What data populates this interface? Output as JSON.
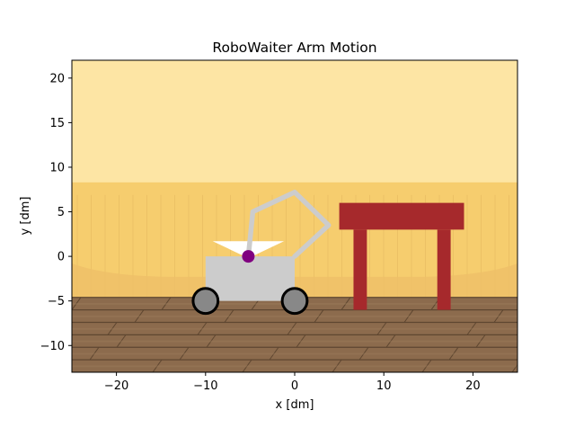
{
  "chart_data": {
    "type": "scatter",
    "title": "RoboWaiter Arm Motion",
    "xlabel": "x [dm]",
    "ylabel": "y [dm]",
    "xlim": [
      -25,
      25
    ],
    "ylim": [
      -13,
      22
    ],
    "xticks": [
      -20,
      -10,
      0,
      10,
      20
    ],
    "yticks": [
      -10,
      -5,
      0,
      5,
      10,
      15,
      20
    ],
    "xtick_labels": [
      "−20",
      "−10",
      "0",
      "10",
      "20"
    ],
    "ytick_labels": [
      "−10",
      "−5",
      "0",
      "5",
      "10",
      "15",
      "20"
    ],
    "grid": false,
    "background": {
      "sky_color": "#fde5a4",
      "wall_color": "#f6cd6e",
      "wall_top_y": 8.3,
      "wainscot_color": "#eec068",
      "floor_top_y": -4.6,
      "floor_color": "#8c6b4d",
      "floor_seam_color": "#5e4630"
    },
    "robot": {
      "body": {
        "x0": -10,
        "x1": 0,
        "y0": -5,
        "y1": 0,
        "color": "#cccccc"
      },
      "wheels": [
        {
          "x": -10,
          "y": -5,
          "r": 1.4
        },
        {
          "x": 0,
          "y": -5,
          "r": 1.4
        }
      ],
      "wheel_fill": "#888888",
      "wheel_edge": "#000000",
      "tray": {
        "points": [
          [
            -9.2,
            1.7
          ],
          [
            -1.2,
            1.7
          ],
          [
            -5.2,
            -0.2
          ]
        ],
        "color": "#ffffff"
      },
      "arm": {
        "points": [
          [
            -5.2,
            0
          ],
          [
            -4.7,
            5
          ],
          [
            0,
            7.2
          ],
          [
            3.8,
            3.5
          ],
          [
            0,
            0
          ]
        ],
        "color": "#cccccc"
      },
      "joint": {
        "x": -5.2,
        "y": 0,
        "color": "#800080"
      }
    },
    "table": {
      "top": {
        "x0": 5,
        "x1": 19,
        "y0": 3,
        "y1": 6
      },
      "legs": [
        {
          "x0": 6.6,
          "x1": 8.1,
          "y0": -6,
          "y1": 3
        },
        {
          "x0": 16,
          "x1": 17.5,
          "y0": -6,
          "y1": 3
        }
      ],
      "color": "#a6292c"
    }
  }
}
